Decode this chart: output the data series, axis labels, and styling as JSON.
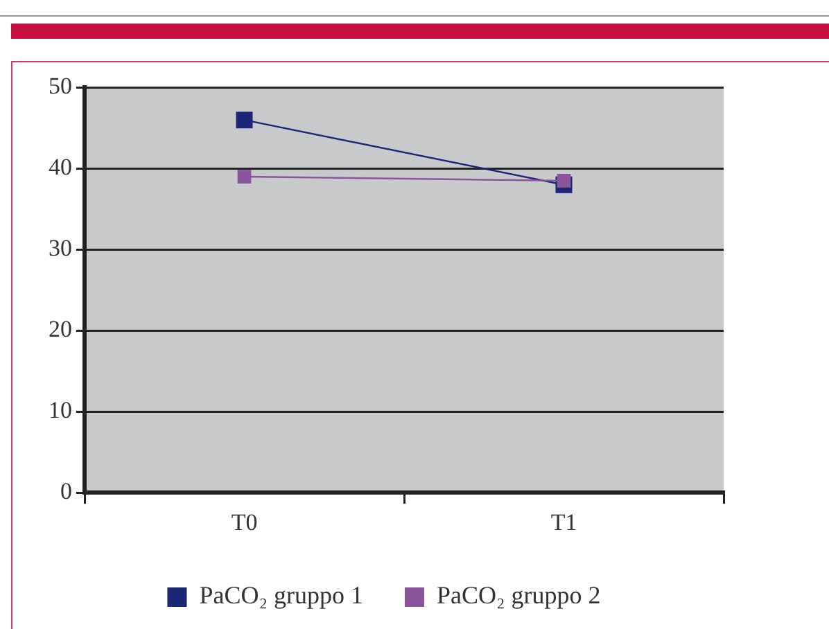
{
  "chart_data": {
    "type": "line",
    "categories": [
      "T0",
      "T1"
    ],
    "series": [
      {
        "name": "PaCO₂ gruppo 1",
        "color": "#1c2677",
        "values": [
          46,
          38
        ]
      },
      {
        "name": "PaCO₂ gruppo 2",
        "color": "#8a559b",
        "values": [
          39,
          38.5
        ]
      }
    ],
    "ylim": [
      0,
      50
    ],
    "yticks": [
      0,
      10,
      20,
      30,
      40,
      50
    ],
    "grid": "y",
    "legend": "bottom",
    "marker": "square",
    "line_style": "solid"
  }
}
